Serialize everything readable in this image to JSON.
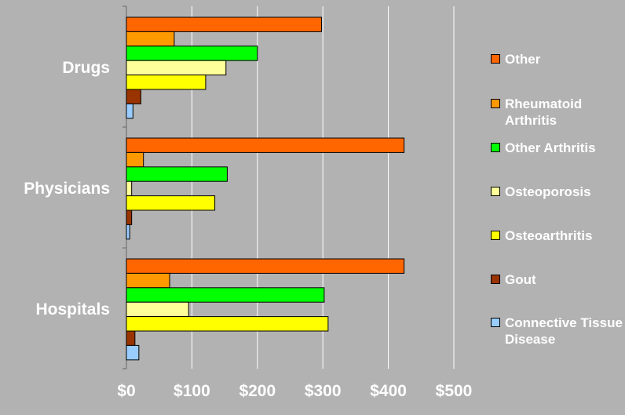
{
  "chart_data": {
    "type": "bar",
    "orientation": "horizontal",
    "categories": [
      "Drugs",
      "Physicians",
      "Hospitals"
    ],
    "series": [
      {
        "name": "Other",
        "color": "#ff6600",
        "values": [
          298,
          424,
          424
        ]
      },
      {
        "name": "Rheumatoid Arthritis",
        "color": "#ff9900",
        "values": [
          73,
          26,
          66
        ]
      },
      {
        "name": "Other Arthritis",
        "color": "#00ff00",
        "values": [
          200,
          154,
          302
        ]
      },
      {
        "name": "Osteoporosis",
        "color": "#ffff99",
        "values": [
          152,
          8,
          95
        ]
      },
      {
        "name": "Osteoarthritis",
        "color": "#ffff00",
        "values": [
          121,
          135,
          308
        ]
      },
      {
        "name": "Gout",
        "color": "#993300",
        "values": [
          22,
          8,
          13
        ]
      },
      {
        "name": "Connective Tissue Disease",
        "color": "#99ccff",
        "values": [
          10,
          5,
          19
        ]
      }
    ],
    "xlim": [
      0,
      500
    ],
    "xticks": [
      "$0",
      "$100",
      "$200",
      "$300",
      "$400",
      "$500"
    ],
    "xlabel": "",
    "ylabel": "",
    "grid": "vertical",
    "legend": "right"
  },
  "legend_items": [
    {
      "label": "Other",
      "color": "#ff6600"
    },
    {
      "label": "Rheumatoid Arthritis",
      "color": "#ff9900"
    },
    {
      "label": "Other Arthritis",
      "color": "#00ff00"
    },
    {
      "label": "Osteoporosis",
      "color": "#ffff99"
    },
    {
      "label": "Osteoarthritis",
      "color": "#ffff00"
    },
    {
      "label": "Gout",
      "color": "#993300"
    },
    {
      "label": "Connective Tissue Disease",
      "color": "#99ccff"
    }
  ],
  "colors": {
    "background": "#b2b2b2",
    "gridline": "#ffffff",
    "text": "#ffffff"
  }
}
